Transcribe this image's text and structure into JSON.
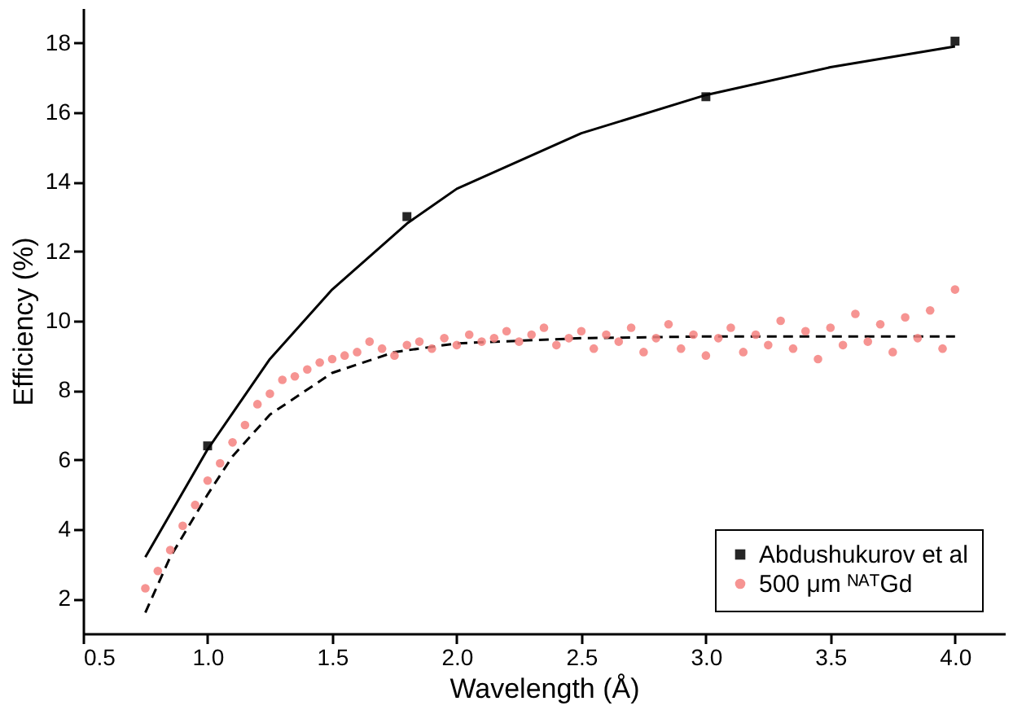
{
  "chart_data": {
    "type": "scatter",
    "xlabel": "Wavelength (Å)",
    "ylabel": "Efficiency (%)",
    "xlim": [
      0.5,
      4.2
    ],
    "ylim": [
      1,
      19
    ],
    "xticks": [
      0.5,
      {
        "value": 1,
        "label": "1.0"
      },
      1.5,
      {
        "value": 2,
        "label": "2.0"
      },
      2.5,
      {
        "value": 3,
        "label": "3.0"
      },
      3.5,
      {
        "value": 4,
        "label": "4.0"
      }
    ],
    "yticks": [
      2,
      4,
      6,
      8,
      10,
      12,
      14,
      16,
      18
    ],
    "grid": false,
    "legend": "bottom right",
    "series": [
      {
        "type": "line",
        "color": "#000000",
        "line_style": "solid",
        "marker": "none",
        "x": [
          0.75,
          1.0,
          1.25,
          1.5,
          1.8,
          2.0,
          2.5,
          3.0,
          3.5,
          4.0
        ],
        "values": [
          3.2,
          6.3,
          8.9,
          10.9,
          12.8,
          13.8,
          15.4,
          16.5,
          17.3,
          17.9
        ]
      },
      {
        "type": "line",
        "color": "#000000",
        "line_style": "dashed",
        "marker": "none",
        "x": [
          0.75,
          0.85,
          1.0,
          1.1,
          1.25,
          1.5,
          1.75,
          2.0,
          2.5,
          3.0,
          4.0
        ],
        "values": [
          1.6,
          3.2,
          5.0,
          6.1,
          7.3,
          8.5,
          9.1,
          9.35,
          9.5,
          9.55,
          9.55
        ]
      },
      {
        "name": "Abdushukurov et al",
        "color": "#000000",
        "marker": "square",
        "x": [
          1.0,
          1.8,
          3.0,
          4.0
        ],
        "values": [
          6.4,
          13.0,
          16.45,
          18.05
        ]
      },
      {
        "name": "500 μm ᴺᴬᵀGd",
        "color": "#f4817f",
        "marker": "circle",
        "x": [
          0.75,
          0.8,
          0.85,
          0.9,
          0.95,
          1.0,
          1.05,
          1.1,
          1.15,
          1.2,
          1.25,
          1.3,
          1.35,
          1.4,
          1.45,
          1.5,
          1.55,
          1.6,
          1.65,
          1.7,
          1.75,
          1.8,
          1.85,
          1.9,
          1.95,
          2.0,
          2.05,
          2.1,
          2.15,
          2.2,
          2.25,
          2.3,
          2.35,
          2.4,
          2.45,
          2.5,
          2.55,
          2.6,
          2.65,
          2.7,
          2.75,
          2.8,
          2.85,
          2.9,
          2.95,
          3.0,
          3.05,
          3.1,
          3.15,
          3.2,
          3.25,
          3.3,
          3.35,
          3.4,
          3.45,
          3.5,
          3.55,
          3.6,
          3.65,
          3.7,
          3.75,
          3.8,
          3.85,
          3.9,
          3.95,
          4.0
        ],
        "values": [
          2.3,
          2.8,
          3.4,
          4.1,
          4.7,
          5.4,
          5.9,
          6.5,
          7.0,
          7.6,
          7.9,
          8.3,
          8.4,
          8.6,
          8.8,
          8.9,
          9.0,
          9.1,
          9.4,
          9.2,
          9.0,
          9.3,
          9.4,
          9.2,
          9.5,
          9.3,
          9.6,
          9.4,
          9.5,
          9.7,
          9.4,
          9.6,
          9.8,
          9.3,
          9.5,
          9.7,
          9.2,
          9.6,
          9.4,
          9.8,
          9.1,
          9.5,
          9.9,
          9.2,
          9.6,
          9.0,
          9.5,
          9.8,
          9.1,
          9.6,
          9.3,
          10.0,
          9.2,
          9.7,
          8.9,
          9.8,
          9.3,
          10.2,
          9.4,
          9.9,
          9.1,
          10.1,
          9.5,
          10.3,
          9.2,
          10.9
        ]
      }
    ]
  }
}
